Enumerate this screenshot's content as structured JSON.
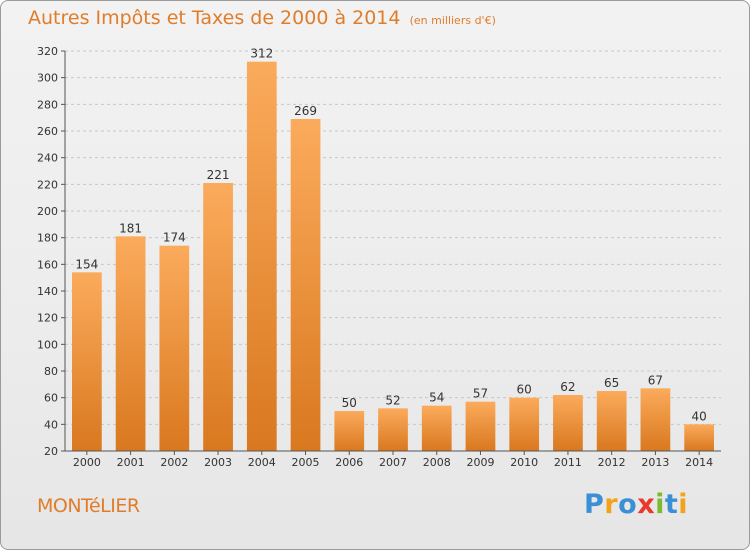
{
  "title": "Autres Impôts et Taxes de 2000 à 2014",
  "subtitle": "(en milliers d'€)",
  "city": "MONTéLIER",
  "logo": {
    "text": "Proxiti",
    "letters": [
      {
        "char": "P",
        "color": "#3a8fd6"
      },
      {
        "char": "r",
        "color": "#f2a31a"
      },
      {
        "char": "o",
        "color": "#3a8fd6"
      },
      {
        "char": "x",
        "color": "#e8392c"
      },
      {
        "char": "i",
        "color": "#7cbb2f"
      },
      {
        "char": "t",
        "color": "#3a8fd6"
      },
      {
        "char": "i",
        "color": "#f2a31a"
      }
    ]
  },
  "colors": {
    "accent": "#e07d2b",
    "bar_light": "#fbab5c",
    "bar_dark": "#d9781f",
    "grid": "#c8c8c8"
  },
  "chart_data": {
    "type": "bar",
    "title": "Autres Impôts et Taxes de 2000 à 2014",
    "subtitle": "(en milliers d'€)",
    "xlabel": "",
    "ylabel": "",
    "categories": [
      "2000",
      "2001",
      "2002",
      "2003",
      "2004",
      "2005",
      "2006",
      "2007",
      "2008",
      "2009",
      "2010",
      "2011",
      "2012",
      "2013",
      "2014"
    ],
    "values": [
      154,
      181,
      174,
      221,
      312,
      269,
      50,
      52,
      54,
      57,
      60,
      62,
      65,
      67,
      40
    ],
    "ylim": [
      20,
      320
    ],
    "yticks": [
      20,
      40,
      60,
      80,
      100,
      120,
      140,
      160,
      180,
      200,
      220,
      240,
      260,
      280,
      300,
      320
    ],
    "grid": true,
    "data_labels": true,
    "legend": "none"
  }
}
